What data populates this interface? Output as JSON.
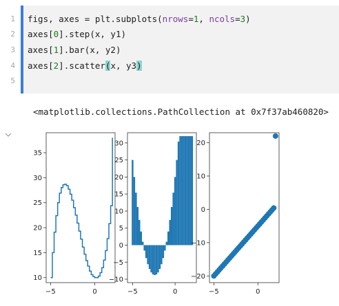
{
  "code_cell": {
    "line_numbers": [
      "1",
      "2",
      "3",
      "4",
      "5"
    ],
    "lines": [
      [
        {
          "t": "figs, axes = plt.subplots(",
          "c": ""
        },
        {
          "t": "nrows",
          "c": "kw"
        },
        {
          "t": "=",
          "c": ""
        },
        {
          "t": "1",
          "c": "num"
        },
        {
          "t": ", ",
          "c": ""
        },
        {
          "t": "ncols",
          "c": "kw"
        },
        {
          "t": "=",
          "c": ""
        },
        {
          "t": "3",
          "c": "num"
        },
        {
          "t": ")",
          "c": ""
        }
      ],
      [
        {
          "t": "axes[",
          "c": ""
        },
        {
          "t": "0",
          "c": "num"
        },
        {
          "t": "].step(x, y1)",
          "c": ""
        }
      ],
      [
        {
          "t": "axes[",
          "c": ""
        },
        {
          "t": "1",
          "c": "num"
        },
        {
          "t": "].bar(x, y2)",
          "c": ""
        }
      ],
      [
        {
          "t": "axes[",
          "c": ""
        },
        {
          "t": "2",
          "c": "num"
        },
        {
          "t": "].scatter",
          "c": ""
        },
        {
          "t": "(",
          "c": "hl"
        },
        {
          "t": "x, y3",
          "c": ""
        },
        {
          "t": ")",
          "c": "hl"
        }
      ],
      []
    ]
  },
  "output": {
    "text": "<matplotlib.collections.PathCollection at 0x7f37ab460820>",
    "collapse_icon": "chevron-down-icon"
  },
  "colors": {
    "series": "#1f77b4",
    "active_cell_bar": "#3d7bd9",
    "editor_bg": "#f2f2f2"
  },
  "chart_data": [
    {
      "type": "line",
      "drawstyle": "step",
      "xlim": [
        -5.5,
        2.3
      ],
      "ylim": [
        9,
        39
      ],
      "x_ticks": [
        -5,
        0
      ],
      "y_ticks": [
        10,
        15,
        20,
        25,
        30,
        35
      ],
      "x_tick_labels": [
        "−5",
        "0"
      ],
      "y_tick_labels": [
        "10",
        "15",
        "20",
        "25",
        "30",
        "35"
      ],
      "series": [
        {
          "x": [
            -5,
            -4.8,
            -4.6,
            -4.4,
            -4.2,
            -4.0,
            -3.8,
            -3.6,
            -3.4,
            -3.2,
            -3.0,
            -2.8,
            -2.6,
            -2.4,
            -2.2,
            -2.0,
            -1.8,
            -1.6,
            -1.4,
            -1.2,
            -1.0,
            -0.8,
            -0.6,
            -0.4,
            -0.2,
            0.0,
            0.2,
            0.4,
            0.6,
            0.8,
            1.0,
            1.2,
            1.4,
            1.6,
            1.8,
            2.0
          ],
          "y": [
            10.0,
            15.0,
            19.1,
            22.4,
            25.0,
            26.9,
            28.0,
            28.6,
            28.7,
            28.4,
            27.7,
            26.7,
            25.5,
            24.0,
            22.5,
            20.9,
            19.3,
            17.7,
            16.1,
            14.7,
            13.4,
            12.3,
            11.3,
            10.6,
            10.2,
            10.0,
            10.0,
            10.3,
            11.0,
            12.0,
            13.5,
            15.4,
            17.8,
            20.8,
            24.4,
            38.0
          ]
        }
      ]
    },
    {
      "type": "bar",
      "xlim": [
        -5.6,
        2.5
      ],
      "ylim": [
        -11,
        33
      ],
      "x_ticks": [
        -5,
        0
      ],
      "y_ticks": [
        -10,
        -5,
        0,
        5,
        10,
        15,
        20,
        25,
        30
      ],
      "x_tick_labels": [
        "−5",
        "0"
      ],
      "y_tick_labels": [
        "−10",
        "−5",
        "0",
        "5",
        "10",
        "15",
        "20",
        "25",
        "30"
      ],
      "series": [
        {
          "x": [
            -5,
            -4.8,
            -4.6,
            -4.4,
            -4.2,
            -4.0,
            -3.8,
            -3.6,
            -3.4,
            -3.2,
            -3.0,
            -2.8,
            -2.6,
            -2.4,
            -2.2,
            -2.0,
            -1.8,
            -1.6,
            -1.4,
            -1.2,
            -1.0,
            -0.8,
            -0.6,
            -0.4,
            -0.2,
            0.0,
            0.2,
            0.4,
            0.6,
            0.8,
            1.0,
            1.2,
            1.4,
            1.6,
            1.8,
            2.0
          ],
          "values": [
            25.0,
            20.0,
            15.4,
            11.2,
            7.4,
            4.0,
            1.0,
            -1.6,
            -3.8,
            -5.6,
            -7.0,
            -8.0,
            -8.6,
            -8.8,
            -8.6,
            -8.0,
            -7.0,
            -5.6,
            -3.8,
            -1.6,
            1.0,
            4.0,
            7.4,
            11.2,
            15.4,
            20.0,
            25.0,
            30.4,
            32.0,
            32.0,
            32.0,
            32.0,
            32.0,
            32.0,
            32.0,
            32.0
          ]
        }
      ]
    },
    {
      "type": "scatter",
      "xlim": [
        -5.5,
        2.4
      ],
      "ylim": [
        -22,
        23
      ],
      "x_ticks": [
        -5,
        0
      ],
      "y_ticks": [
        -20,
        -10,
        0,
        10,
        20
      ],
      "x_tick_labels": [
        "−5",
        "0"
      ],
      "y_tick_labels": [
        "−20",
        "−10",
        "0",
        "10",
        "20"
      ],
      "series": [
        {
          "x": [
            -5,
            -4.8,
            -4.6,
            -4.4,
            -4.2,
            -4.0,
            -3.8,
            -3.6,
            -3.4,
            -3.2,
            -3.0,
            -2.8,
            -2.6,
            -2.4,
            -2.2,
            -2.0,
            -1.8,
            -1.6,
            -1.4,
            -1.2,
            -1.0,
            -0.8,
            -0.6,
            -0.4,
            -0.2,
            0.0,
            0.2,
            0.4,
            0.6,
            0.8,
            1.0,
            1.2,
            1.4,
            1.6,
            1.8,
            2.0
          ],
          "y": [
            -20,
            -19.4,
            -18.8,
            -18.2,
            -17.6,
            -17.0,
            -16.4,
            -15.8,
            -15.2,
            -14.6,
            -14.0,
            -13.4,
            -12.8,
            -12.2,
            -11.6,
            -11.0,
            -10.4,
            -9.8,
            -9.2,
            -8.6,
            -8.0,
            -7.4,
            -6.8,
            -6.2,
            -5.6,
            -5.0,
            -4.4,
            -3.8,
            -3.2,
            -2.6,
            -2.0,
            -1.4,
            -0.8,
            -0.2,
            0.4,
            22.0
          ]
        }
      ]
    }
  ]
}
